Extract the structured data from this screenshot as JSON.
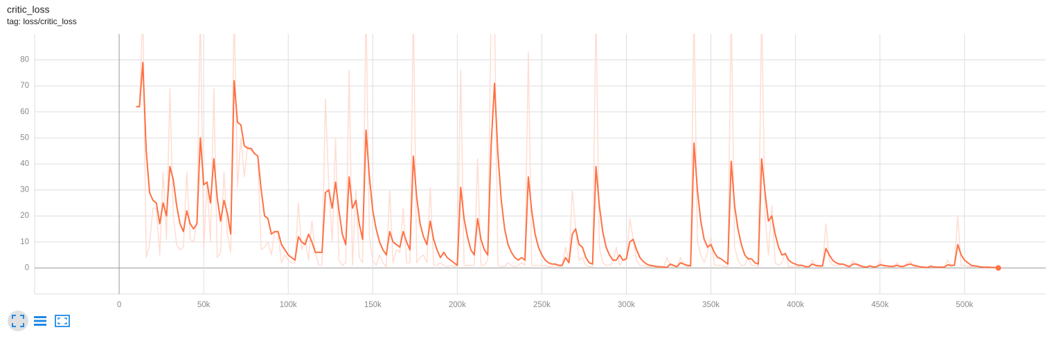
{
  "chart_data": {
    "type": "line",
    "title": "critic_loss",
    "subtitle": "tag: loss/critic_loss",
    "x": [
      10000,
      12000,
      14000,
      16000,
      18000,
      20000,
      22000,
      24000,
      26000,
      28000,
      30000,
      32000,
      34000,
      36000,
      38000,
      40000,
      42000,
      44000,
      46000,
      48000,
      50000,
      52000,
      54000,
      56000,
      58000,
      60000,
      62000,
      64000,
      66000,
      68000,
      70000,
      72000,
      74000,
      76000,
      78000,
      80000,
      82000,
      84000,
      86000,
      88000,
      90000,
      92000,
      94000,
      96000,
      98000,
      100000,
      102000,
      104000,
      106000,
      108000,
      110000,
      112000,
      114000,
      116000,
      118000,
      120000,
      122000,
      124000,
      126000,
      128000,
      130000,
      132000,
      134000,
      136000,
      138000,
      140000,
      142000,
      144000,
      146000,
      148000,
      150000,
      152000,
      154000,
      156000,
      158000,
      160000,
      162000,
      164000,
      166000,
      168000,
      170000,
      172000,
      174000,
      176000,
      178000,
      180000,
      182000,
      184000,
      186000,
      188000,
      190000,
      192000,
      194000,
      196000,
      198000,
      200000,
      202000,
      204000,
      206000,
      208000,
      210000,
      212000,
      214000,
      216000,
      218000,
      220000,
      222000,
      224000,
      226000,
      228000,
      230000,
      232000,
      234000,
      236000,
      238000,
      240000,
      242000,
      244000,
      246000,
      248000,
      250000,
      252000,
      254000,
      256000,
      258000,
      260000,
      262000,
      264000,
      266000,
      268000,
      270000,
      272000,
      274000,
      276000,
      278000,
      280000,
      282000,
      284000,
      286000,
      288000,
      290000,
      292000,
      294000,
      296000,
      298000,
      300000,
      302000,
      304000,
      306000,
      308000,
      310000,
      312000,
      314000,
      316000,
      318000,
      320000,
      322000,
      324000,
      326000,
      328000,
      330000,
      332000,
      334000,
      336000,
      338000,
      340000,
      342000,
      344000,
      346000,
      348000,
      350000,
      352000,
      354000,
      356000,
      358000,
      360000,
      362000,
      364000,
      366000,
      368000,
      370000,
      372000,
      374000,
      376000,
      378000,
      380000,
      382000,
      384000,
      386000,
      388000,
      390000,
      392000,
      394000,
      396000,
      398000,
      400000,
      402000,
      404000,
      406000,
      408000,
      410000,
      412000,
      414000,
      416000,
      418000,
      420000,
      422000,
      424000,
      426000,
      428000,
      430000,
      432000,
      434000,
      436000,
      438000,
      440000,
      442000,
      444000,
      446000,
      448000,
      450000,
      452000,
      454000,
      456000,
      458000,
      460000,
      462000,
      464000,
      466000,
      468000,
      470000,
      472000,
      474000,
      476000,
      478000,
      480000,
      482000,
      484000,
      486000,
      488000,
      490000,
      492000,
      494000,
      496000,
      498000,
      500000,
      502000,
      504000,
      506000,
      508000,
      510000,
      512000,
      514000,
      516000,
      518000,
      520000
    ],
    "series": [
      {
        "color": "#ffddd2",
        "values": [
          62,
          62,
          100,
          4,
          9,
          23,
          23,
          5,
          37,
          11,
          69,
          20,
          9,
          7,
          8,
          37,
          11,
          10,
          18,
          100,
          7,
          33,
          10,
          69,
          4,
          6,
          37,
          13,
          6,
          100,
          31,
          50,
          35,
          47,
          45,
          44,
          43,
          7,
          8,
          10,
          5,
          14,
          13,
          2,
          5,
          3,
          2,
          2,
          25,
          7,
          11,
          3,
          18,
          6,
          1,
          1,
          65,
          31,
          10,
          50,
          3,
          1,
          2,
          76,
          1,
          30,
          4,
          2,
          100,
          12,
          3,
          1,
          5,
          2,
          0.5,
          30,
          2,
          7,
          6,
          23,
          2,
          2,
          100,
          2,
          4,
          5,
          2,
          31,
          1,
          1,
          2,
          1,
          0.5,
          1,
          0.5,
          1,
          76,
          1,
          1,
          1,
          1,
          42,
          1,
          1,
          3,
          100,
          100,
          1,
          0.5,
          0.5,
          2,
          1,
          0.5,
          1,
          2,
          1,
          83,
          1,
          1,
          1,
          1,
          1,
          0.5,
          0.5,
          1,
          0.5,
          0.5,
          8,
          2,
          30,
          15,
          3,
          4,
          1,
          0.5,
          0.5,
          100,
          8,
          2,
          1,
          1,
          2,
          8,
          1,
          3,
          3,
          19,
          11,
          3,
          1,
          1,
          0.5,
          0.5,
          0.5,
          0.3,
          0.3,
          0.2,
          4,
          1,
          0.5,
          0.3,
          4,
          1,
          0.5,
          0.5,
          100,
          10,
          5,
          2,
          6,
          12,
          1,
          1,
          1,
          0.5,
          0.5,
          100,
          8,
          3,
          1,
          1,
          4,
          1,
          1,
          0.5,
          100,
          20,
          5,
          24,
          2,
          1,
          2,
          6,
          0.5,
          0.5,
          0.5,
          0.5,
          1,
          0.3,
          0.3,
          3,
          0.5,
          0.5,
          0.5,
          17,
          3,
          1,
          1,
          1,
          1.5,
          0.5,
          0.3,
          3,
          1,
          0.5,
          0.3,
          0.2,
          1,
          0.3,
          0.5,
          3,
          0.5,
          0.5,
          0.3,
          0.5,
          2,
          0.3,
          0.5,
          2,
          2.5,
          0.5,
          0.3,
          0.2,
          0.2,
          0.1,
          1,
          0.2,
          0.2,
          0.2,
          0.3,
          3,
          0.5,
          1,
          20,
          1,
          1,
          0.5,
          0.5,
          0.5,
          0.5,
          0.3,
          0.2,
          0.3,
          0.1,
          0.1,
          0
        ]
      },
      {
        "color": "#ff7043",
        "values": [
          62,
          62,
          79,
          45,
          29,
          26,
          25,
          17,
          25,
          20,
          39,
          34,
          24,
          17,
          14,
          22,
          17,
          15,
          17,
          50,
          32,
          33,
          25,
          42,
          27,
          18,
          26,
          21,
          13,
          72,
          56,
          55,
          47,
          46,
          46,
          44,
          43,
          30,
          20,
          19,
          13,
          14,
          14,
          9,
          7,
          5,
          4,
          3,
          12,
          10,
          9,
          13,
          10,
          6,
          6,
          6,
          29,
          30,
          23,
          33,
          22,
          13,
          9,
          35,
          23,
          26,
          17,
          11,
          53,
          35,
          22,
          15,
          10,
          7,
          5,
          14,
          10,
          9,
          8,
          14,
          10,
          7,
          43,
          27,
          17,
          12,
          9,
          18,
          11,
          7,
          4,
          6,
          4,
          3,
          2,
          1,
          31,
          19,
          12,
          7,
          5,
          19,
          11,
          7,
          5,
          47,
          71,
          44,
          26,
          15,
          9,
          6,
          4,
          3,
          4,
          3,
          35,
          22,
          13,
          8,
          5,
          3,
          2,
          1.5,
          1.5,
          1,
          1,
          4,
          2,
          13,
          15,
          9,
          8,
          4,
          2,
          1.5,
          39,
          24,
          14,
          8,
          5,
          3,
          3,
          5,
          3,
          3.5,
          10,
          11,
          7,
          4,
          2.5,
          1.5,
          1,
          0.8,
          0.5,
          0.5,
          0.3,
          0.2,
          1.5,
          1,
          0.5,
          2,
          1.5,
          1,
          0.8,
          48,
          30,
          18,
          11,
          8,
          9,
          6,
          4,
          3.5,
          2.5,
          1.5,
          41,
          24,
          15,
          9,
          5,
          3.5,
          3.5,
          2,
          1.5,
          42,
          29,
          18,
          20,
          13,
          8,
          5,
          5.5,
          3,
          2,
          1.5,
          1,
          1,
          0.5,
          0.5,
          1.5,
          1,
          0.8,
          0.8,
          7.5,
          5,
          3,
          2,
          1.5,
          1.5,
          1,
          0.5,
          1.5,
          1.5,
          1,
          0.5,
          0.3,
          0.8,
          0.4,
          0.5,
          1.2,
          1,
          0.8,
          0.6,
          0.6,
          1,
          0.6,
          0.6,
          1.2,
          1.5,
          1,
          0.7,
          0.4,
          0.3,
          0.2,
          0.6,
          0.4,
          0.3,
          0.3,
          0.3,
          1.2,
          1,
          1,
          9,
          5,
          3,
          2,
          1,
          0.8,
          0.6,
          0.3,
          0.3,
          0.3,
          0.2,
          0.2,
          0
        ]
      }
    ],
    "xlim": [
      -50000,
      548000
    ],
    "ylim": [
      -10,
      90
    ],
    "xticks": [
      0,
      {
        "value": 50000,
        "label": "50k"
      },
      {
        "value": 100000,
        "label": "100k"
      },
      {
        "value": 150000,
        "label": "150k"
      },
      {
        "value": 200000,
        "label": "200k"
      },
      {
        "value": 250000,
        "label": "250k"
      },
      {
        "value": 300000,
        "label": "300k"
      },
      {
        "value": 350000,
        "label": "350k"
      },
      {
        "value": 400000,
        "label": "400k"
      },
      {
        "value": 450000,
        "label": "450k"
      },
      {
        "value": 500000,
        "label": "500k"
      }
    ],
    "yticks": [
      0,
      10,
      20,
      30,
      40,
      50,
      60,
      70,
      80
    ],
    "grid": true
  }
}
